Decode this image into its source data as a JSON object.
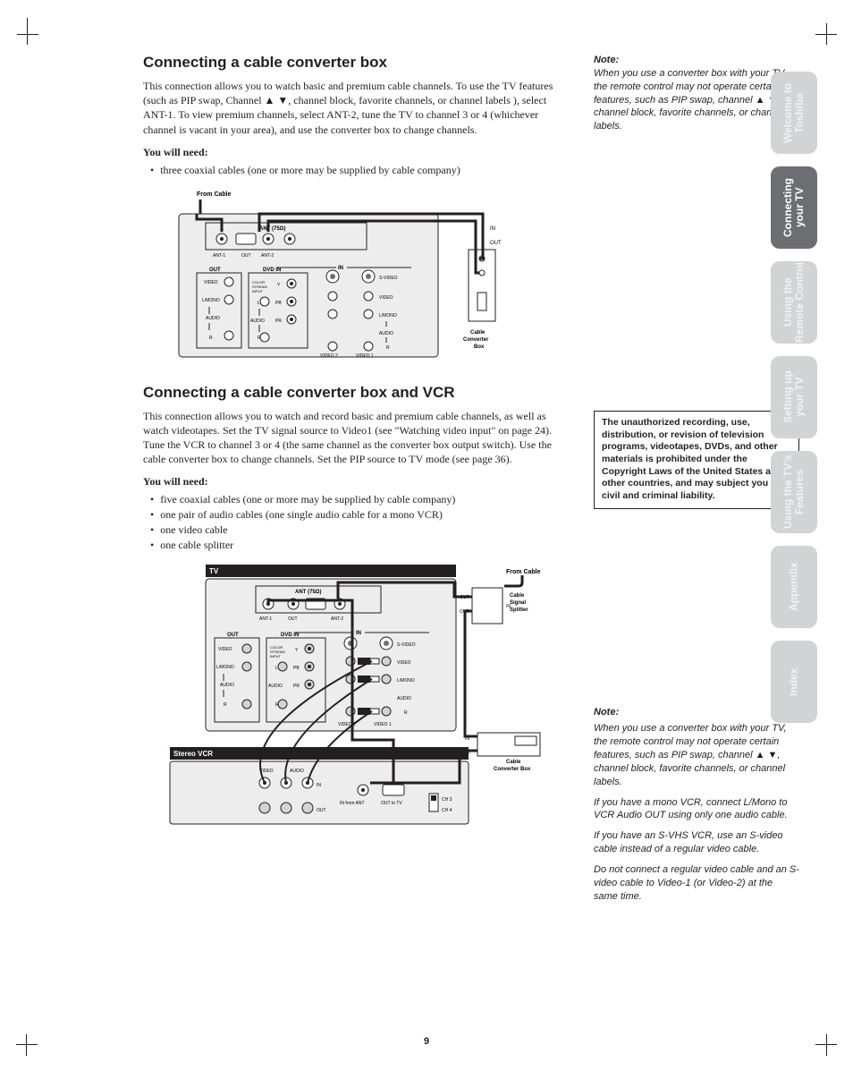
{
  "page_number": "9",
  "tabs": [
    {
      "label": "Welcome to\nToshiba",
      "active": false
    },
    {
      "label": "Connecting\nyour TV",
      "active": true
    },
    {
      "label": "Using the\nRemote Control",
      "active": false
    },
    {
      "label": "Setting up\nyour TV",
      "active": false
    },
    {
      "label": "Using the TV's\nFeatures",
      "active": false
    },
    {
      "label": "Appendix",
      "active": false
    },
    {
      "label": "Index",
      "active": false
    }
  ],
  "sections": [
    {
      "heading": "Connecting a cable converter box",
      "body": "This connection allows you to watch basic and premium cable channels. To use the TV features (such as PIP swap, Channel ▲ ▼, channel block, favorite channels, or channel labels ), select ANT-1. To view premium channels, select ANT-2, tune the TV to channel 3 or 4 (whichever channel is vacant in your area), and use the converter box to change channels.",
      "needs_label": "You will need:",
      "needs": [
        "three coaxial cables (one or more may be supplied by cable company)"
      ]
    },
    {
      "heading": "Connecting a cable converter box and VCR",
      "body": "This connection allows you to watch and record basic and premium cable channels, as well as watch videotapes. Set the TV signal source to Video1 (see \"Watching video input\" on page 24). Tune the VCR to channel 3 or 4 (the same channel as the converter box output switch). Use the cable converter box to change channels. Set the PIP source to TV mode (see page 36).",
      "needs_label": "You will need:",
      "needs": [
        "five coaxial cables (one or more may be supplied by cable company)",
        "one pair of audio cables (one single audio cable for a mono VCR)",
        "one video cable",
        "one cable splitter"
      ]
    }
  ],
  "notes": {
    "top": {
      "head": "Note:",
      "body": "When you use a converter box with your TV, the remote control may not operate certain features, such as PIP swap, channel ▲ ▼, channel block, favorite channels, or channel labels."
    },
    "warning": "The unauthorized recording, use, distribution, or revision of television programs, videotapes, DVDs, and other materials is prohibited under the Copyright Laws of the United States and other countries, and may subject you to civil and criminal liability.",
    "bottom": {
      "head": "Note:",
      "paras": [
        "When you use a converter box with your TV, the remote control may not operate certain features, such as PIP swap, channel ▲ ▼, channel block, favorite channels, or channel labels.",
        "If you have a mono VCR, connect L/Mono to VCR Audio OUT using only one audio cable.",
        "If you have an S-VHS VCR, use an S-video cable instead of a regular video cable.",
        "Do not connect a regular video cable and an S-video cable to Video-1 (or Video-2) at the same time."
      ]
    }
  },
  "figure1": {
    "from_cable": "From Cable",
    "ant": "ANT (75Ω)",
    "ant1": "ANT-1",
    "out": "OUT",
    "ant2": "ANT-2",
    "in": "IN",
    "out_label": "OUT",
    "dvd_in": "DVD IN",
    "color_stream": "COLOR\nSTREAM\nINPUT",
    "y": "Y",
    "pb": "PB",
    "pr": "PR",
    "video": "VIDEO",
    "lmono": "L/MONO",
    "audio": "AUDIO",
    "r": "R",
    "l": "L",
    "svideo": "S-VIDEO",
    "video1": "VIDEO 1",
    "video2": "VIDEO 2",
    "box_label": "Cable\nConverter\nBox",
    "in_port": "IN",
    "out_port": "OUT"
  },
  "figure2": {
    "tv": "TV",
    "from_cable": "From Cable",
    "ant": "ANT (75Ω)",
    "ant1": "ANT-1",
    "out": "OUT",
    "ant2": "ANT-2",
    "in": "IN",
    "out_label": "OUT",
    "dvd_in": "DVD IN",
    "color_stream": "COLOR\nSTREAM\nINPUT",
    "y": "Y",
    "pb": "PB",
    "pr": "PR",
    "video": "VIDEO",
    "lmono": "L/MONO",
    "audio": "AUDIO",
    "r": "R",
    "l": "L",
    "svideo": "S-VIDEO",
    "video1": "VIDEO 1",
    "video2": "VIDEO 2",
    "splitter": "Cable\nSignal\nSplitter",
    "box_label": "Cable\nConverter Box",
    "stereo_vcr": "Stereo VCR",
    "in_port": "IN",
    "out_port": "OUT",
    "in_from_ant": "IN from ANT",
    "out_to_tv": "OUT to TV",
    "ch3": "CH 3",
    "ch4": "CH 4"
  },
  "colors": {
    "text": "#231f20",
    "tab_inactive_bg": "#d1d3d4",
    "tab_inactive_fg": "#f1f2f2",
    "tab_active_bg": "#6d6e71",
    "tab_active_fg": "#ffffff",
    "panel_fill": "#ededee",
    "panel_stroke": "#231f20",
    "cable": "#231f20"
  }
}
